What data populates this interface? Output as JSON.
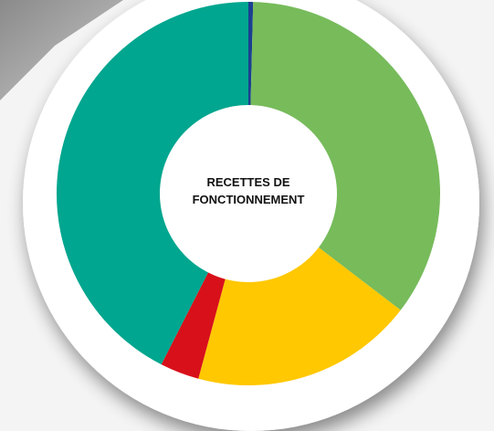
{
  "chart_data": {
    "type": "donut",
    "title": "RECETTES DE FONCTIONNEMENT",
    "values": [
      0.4,
      35,
      18.8,
      3.3,
      42.5
    ],
    "colors": [
      "#1b3f8f",
      "#77bb5b",
      "#ffc800",
      "#d8101a",
      "#00a68f"
    ]
  }
}
